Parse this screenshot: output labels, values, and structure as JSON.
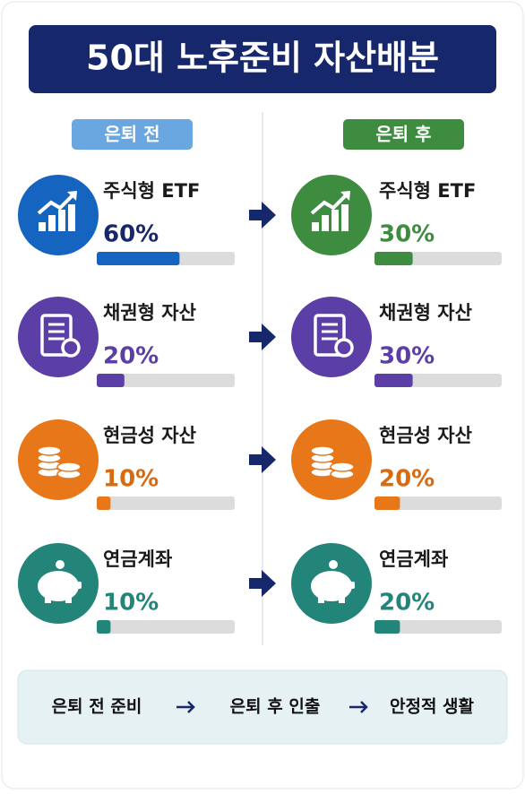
{
  "title": "50대 노후준비 자산배분",
  "columns": [
    {
      "heading": "은퇴 전",
      "items": [
        {
          "name": "주식형 ETF",
          "value": 60,
          "value_label": "60%"
        },
        {
          "name": "채권형 자산",
          "value": 20,
          "value_label": "20%"
        },
        {
          "name": "현금성 자산",
          "value": 10,
          "value_label": "10%"
        },
        {
          "name": "연금계좌",
          "value": 10,
          "value_label": "10%"
        }
      ]
    },
    {
      "heading": "은퇴 후",
      "items": [
        {
          "name": "주식형 ETF",
          "value": 30,
          "value_label": "30%"
        },
        {
          "name": "채권형 자산",
          "value": 30,
          "value_label": "30%"
        },
        {
          "name": "현금성 자산",
          "value": 20,
          "value_label": "20%"
        },
        {
          "name": "연금계좌",
          "value": 20,
          "value_label": "20%"
        }
      ]
    }
  ],
  "flow": [
    "은퇴 전 준비",
    "은퇴 후 인출",
    "안정적 생활"
  ]
}
